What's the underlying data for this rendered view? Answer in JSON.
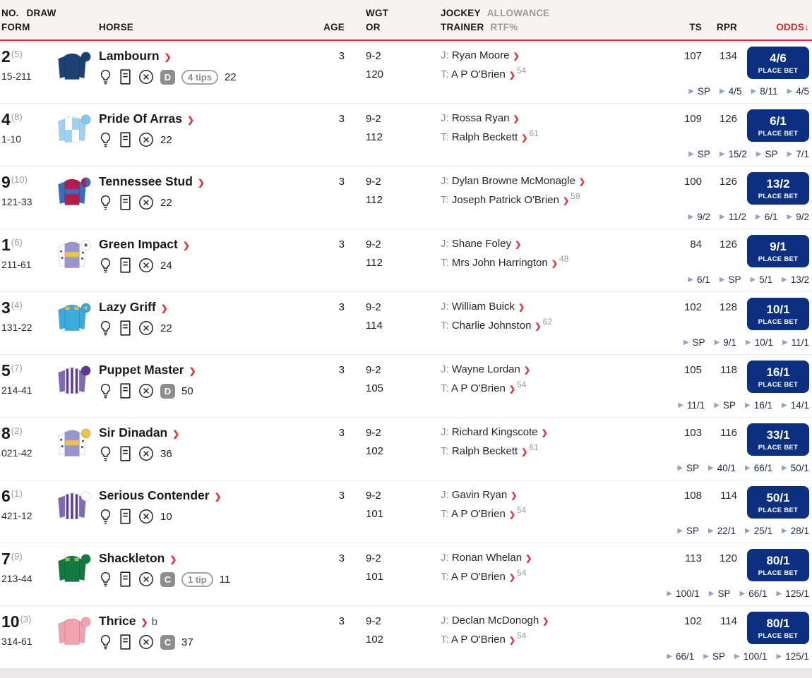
{
  "header": {
    "no_draw": "NO. DRAW",
    "form": "FORM",
    "horse": "HORSE",
    "age": "AGE",
    "wgt": "WGT",
    "or": "OR",
    "jockey": "JOCKEY",
    "allowance": "ALLOWANCE",
    "trainer": "TRAINER",
    "rtf": "RTF%",
    "ts": "TS",
    "rpr": "RPR",
    "odds": "ODDS↓"
  },
  "labels": {
    "place_bet": "PLACE BET",
    "jockey_prefix": "J:",
    "trainer_prefix": "T:"
  },
  "colors": {
    "accent_red": "#d8232a",
    "button_navy": "#0d2f7f",
    "header_bg": "#f5f4f2"
  },
  "rows": [
    {
      "no": "2",
      "draw": "(5)",
      "form": "15-211",
      "horse": "Lambourn",
      "headgear": "",
      "badge": "D",
      "tips": "4 tips",
      "count": "22",
      "age": "3",
      "wgt": "9-2",
      "or": "120",
      "jockey": "Ryan Moore",
      "trainer": "A P O'Brien",
      "rtf": "54",
      "ts": "107",
      "rpr": "134",
      "odds": "4/6",
      "history": [
        "SP",
        "4/5",
        "8/11",
        "4/5"
      ],
      "silk": {
        "pattern": "solid",
        "body": "#1c4273",
        "sleeves": "#1c4273",
        "cap": "#1c4273",
        "accent": "#1c4273"
      }
    },
    {
      "no": "4",
      "draw": "(8)",
      "form": "1-10",
      "horse": "Pride Of Arras",
      "headgear": "",
      "badge": "",
      "tips": "",
      "count": "22",
      "age": "3",
      "wgt": "9-2",
      "or": "112",
      "jockey": "Rossa Ryan",
      "trainer": "Ralph Beckett",
      "rtf": "61",
      "ts": "109",
      "rpr": "126",
      "odds": "6/1",
      "history": [
        "SP",
        "15/2",
        "SP",
        "7/1"
      ],
      "silk": {
        "pattern": "quartered",
        "body": "#ffffff",
        "sleeves": "#9ed2f0",
        "cap": "#85c6ec",
        "accent": "#9ed2f0"
      }
    },
    {
      "no": "9",
      "draw": "(10)",
      "form": "121-33",
      "horse": "Tennessee Stud",
      "headgear": "",
      "badge": "",
      "tips": "",
      "count": "22",
      "age": "3",
      "wgt": "9-2",
      "or": "112",
      "jockey": "Dylan Browne McMonagle",
      "trainer": "Joseph Patrick O'Brien",
      "rtf": "59",
      "ts": "100",
      "rpr": "126",
      "odds": "13/2",
      "history": [
        "9/2",
        "11/2",
        "6/1",
        "9/2"
      ],
      "silk": {
        "pattern": "hoop",
        "body": "#b11d4e",
        "sleeves": "#3570bd",
        "cap": "#b11d4e",
        "cap2": "#3570bd",
        "accent": "#3570bd"
      }
    },
    {
      "no": "1",
      "draw": "(6)",
      "form": "211-61",
      "horse": "Green Impact",
      "headgear": "",
      "badge": "",
      "tips": "",
      "count": "24",
      "age": "3",
      "wgt": "9-2",
      "or": "112",
      "jockey": "Shane Foley",
      "trainer": "Mrs John Harrington",
      "rtf": "48",
      "ts": "84",
      "rpr": "126",
      "odds": "9/1",
      "history": [
        "6/1",
        "SP",
        "5/1",
        "13/2"
      ],
      "silk": {
        "pattern": "hoop",
        "body": "#9b95ce",
        "sleeves": "#ffffff",
        "sleeve_dot": "#5f4a9e",
        "cap": "#ffffff",
        "cap_dot": "#5f4a9e",
        "accent": "#ecc44d"
      }
    },
    {
      "no": "3",
      "draw": "(4)",
      "form": "131-22",
      "horse": "Lazy Griff",
      "headgear": "",
      "badge": "",
      "tips": "",
      "count": "22",
      "age": "3",
      "wgt": "9-2",
      "or": "114",
      "jockey": "William Buick",
      "trainer": "Charlie Johnston",
      "rtf": "62",
      "ts": "102",
      "rpr": "128",
      "odds": "10/1",
      "history": [
        "SP",
        "9/1",
        "10/1",
        "11/1"
      ],
      "silk": {
        "pattern": "epaulets",
        "body": "#3aabdd",
        "sleeves": "#3aabdd",
        "cap": "#3aabdd",
        "cap_dot": "#e2b84a",
        "accent": "#e2b84a"
      }
    },
    {
      "no": "5",
      "draw": "(7)",
      "form": "214-41",
      "horse": "Puppet Master",
      "headgear": "",
      "badge": "D",
      "tips": "",
      "count": "50",
      "age": "3",
      "wgt": "9-2",
      "or": "105",
      "jockey": "Wayne Lordan",
      "trainer": "A P O'Brien",
      "rtf": "54",
      "ts": "105",
      "rpr": "118",
      "odds": "16/1",
      "history": [
        "11/1",
        "SP",
        "16/1",
        "14/1"
      ],
      "silk": {
        "pattern": "stripes",
        "body": "#ffffff",
        "sleeves": "#8169b3",
        "cap": "#5c3b98",
        "accent": "#5c3b98"
      }
    },
    {
      "no": "8",
      "draw": "(2)",
      "form": "021-42",
      "horse": "Sir Dinadan",
      "headgear": "",
      "badge": "",
      "tips": "",
      "count": "36",
      "age": "3",
      "wgt": "9-2",
      "or": "102",
      "jockey": "Richard Kingscote",
      "trainer": "Ralph Beckett",
      "rtf": "61",
      "ts": "103",
      "rpr": "116",
      "odds": "33/1",
      "history": [
        "SP",
        "40/1",
        "66/1",
        "50/1"
      ],
      "silk": {
        "pattern": "hoop",
        "body": "#9b95ce",
        "sleeves": "#ffffff",
        "sleeve_dot": "#5f4a9e",
        "cap": "#ecc44d",
        "accent": "#ecc44d"
      }
    },
    {
      "no": "6",
      "draw": "(1)",
      "form": "421-12",
      "horse": "Serious Contender",
      "headgear": "",
      "badge": "",
      "tips": "",
      "count": "10",
      "age": "3",
      "wgt": "9-2",
      "or": "101",
      "jockey": "Gavin Ryan",
      "trainer": "A P O'Brien",
      "rtf": "54",
      "ts": "108",
      "rpr": "114",
      "odds": "50/1",
      "history": [
        "SP",
        "22/1",
        "25/1",
        "28/1"
      ],
      "silk": {
        "pattern": "stripes",
        "body": "#ffffff",
        "sleeves": "#8169b3",
        "cap": "#ffffff",
        "accent": "#5c3b98"
      }
    },
    {
      "no": "7",
      "draw": "(9)",
      "form": "213-44",
      "horse": "Shackleton",
      "headgear": "",
      "badge": "C",
      "tips": "1 tip",
      "count": "11",
      "age": "3",
      "wgt": "9-2",
      "or": "101",
      "jockey": "Ronan Whelan",
      "trainer": "A P O'Brien",
      "rtf": "54",
      "ts": "113",
      "rpr": "120",
      "odds": "80/1",
      "history": [
        "100/1",
        "SP",
        "66/1",
        "125/1"
      ],
      "silk": {
        "pattern": "epaulets",
        "body": "#15793f",
        "sleeves": "#15793f",
        "cap": "#15793f",
        "accent": "#7bc06f"
      }
    },
    {
      "no": "10",
      "draw": "(3)",
      "form": "314-61",
      "horse": "Thrice",
      "headgear": "b",
      "badge": "C",
      "tips": "",
      "count": "37",
      "age": "3",
      "wgt": "9-2",
      "or": "102",
      "jockey": "Declan McDonogh",
      "trainer": "A P O'Brien",
      "rtf": "54",
      "ts": "102",
      "rpr": "114",
      "odds": "80/1",
      "history": [
        "66/1",
        "SP",
        "100/1",
        "125/1"
      ],
      "silk": {
        "pattern": "solid",
        "body": "#f0a2ae",
        "sleeves": "#f0a2ae",
        "cap": "#f0a2ae",
        "accent": "#f0a2ae"
      }
    }
  ]
}
